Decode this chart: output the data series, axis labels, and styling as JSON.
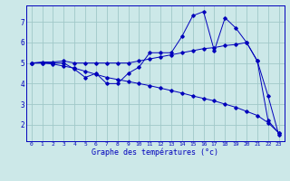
{
  "xlabel": "Graphe des températures (°c)",
  "bg_color": "#cce8e8",
  "grid_color": "#a0c8c8",
  "line_color": "#0000bb",
  "hours": [
    0,
    1,
    2,
    3,
    4,
    5,
    6,
    7,
    8,
    9,
    10,
    11,
    12,
    13,
    14,
    15,
    16,
    17,
    18,
    19,
    20,
    21,
    22,
    23
  ],
  "line1": [
    5.0,
    5.0,
    5.0,
    5.0,
    4.7,
    4.3,
    4.5,
    4.0,
    4.0,
    4.5,
    4.8,
    5.5,
    5.5,
    5.5,
    6.3,
    7.3,
    7.5,
    5.6,
    7.2,
    6.7,
    6.0,
    5.1,
    3.4,
    1.5
  ],
  "line2": [
    5.0,
    5.05,
    5.05,
    5.1,
    5.0,
    5.0,
    5.0,
    5.0,
    5.0,
    5.0,
    5.1,
    5.2,
    5.3,
    5.4,
    5.5,
    5.6,
    5.7,
    5.75,
    5.85,
    5.9,
    6.0,
    5.1,
    2.2,
    1.6
  ],
  "line3": [
    5.0,
    5.0,
    4.95,
    4.85,
    4.75,
    4.6,
    4.45,
    4.3,
    4.2,
    4.1,
    4.0,
    3.9,
    3.78,
    3.66,
    3.54,
    3.4,
    3.28,
    3.16,
    3.0,
    2.85,
    2.65,
    2.45,
    2.1,
    1.6
  ],
  "ylim": [
    1.2,
    7.8
  ],
  "yticks": [
    2,
    3,
    4,
    5,
    6,
    7
  ],
  "xlim": [
    -0.5,
    23.5
  ],
  "xtick_fontsize": 4.5,
  "ytick_fontsize": 5.5,
  "xlabel_fontsize": 6.0
}
